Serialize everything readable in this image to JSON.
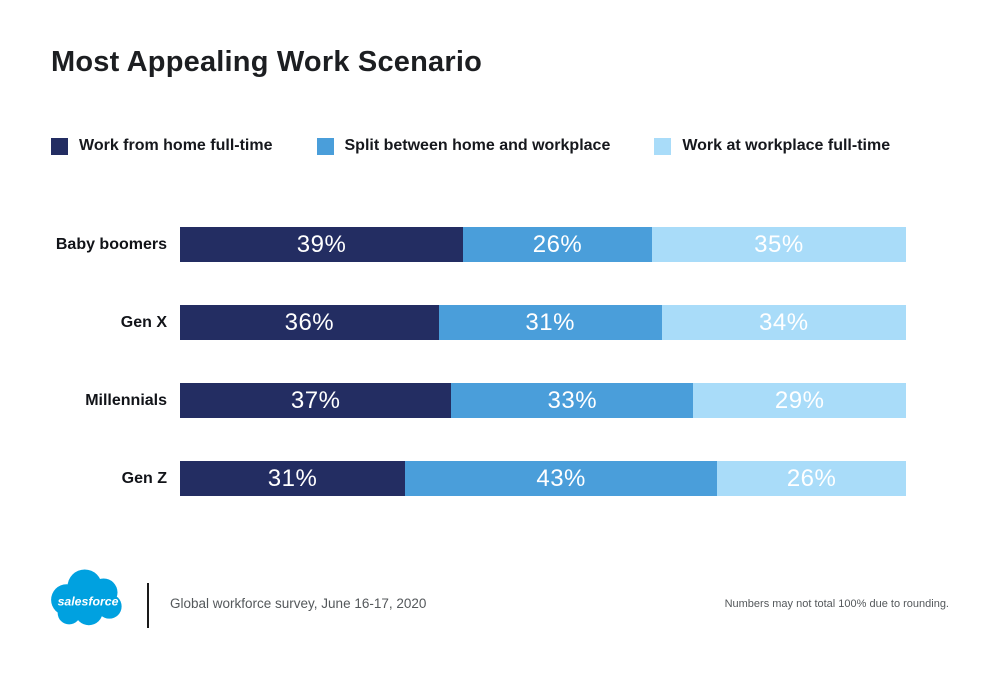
{
  "chart_data": {
    "type": "bar",
    "variant": "stacked-horizontal",
    "title": "Most Appealing Work Scenario",
    "categories": [
      "Baby boomers",
      "Gen X",
      "Millennials",
      "Gen Z"
    ],
    "series": [
      {
        "name": "Work from home full-time",
        "color": "#232D62",
        "values": [
          39,
          36,
          37,
          31
        ]
      },
      {
        "name": "Split between home and workplace",
        "color": "#4A9EDA",
        "values": [
          26,
          31,
          33,
          43
        ]
      },
      {
        "name": "Work at workplace full-time",
        "color": "#A9DCF9",
        "values": [
          35,
          34,
          29,
          26
        ]
      }
    ],
    "value_suffix": "%",
    "value_label_color": "#FFFFFF",
    "legend_position": "top",
    "grid": false,
    "axis_labels": "none"
  },
  "footer": {
    "logo_text": "salesforce",
    "logo_color": "#00A1E0",
    "source": "Global workforce survey, June 16-17, 2020",
    "note": "Numbers may not total 100% due to rounding."
  }
}
